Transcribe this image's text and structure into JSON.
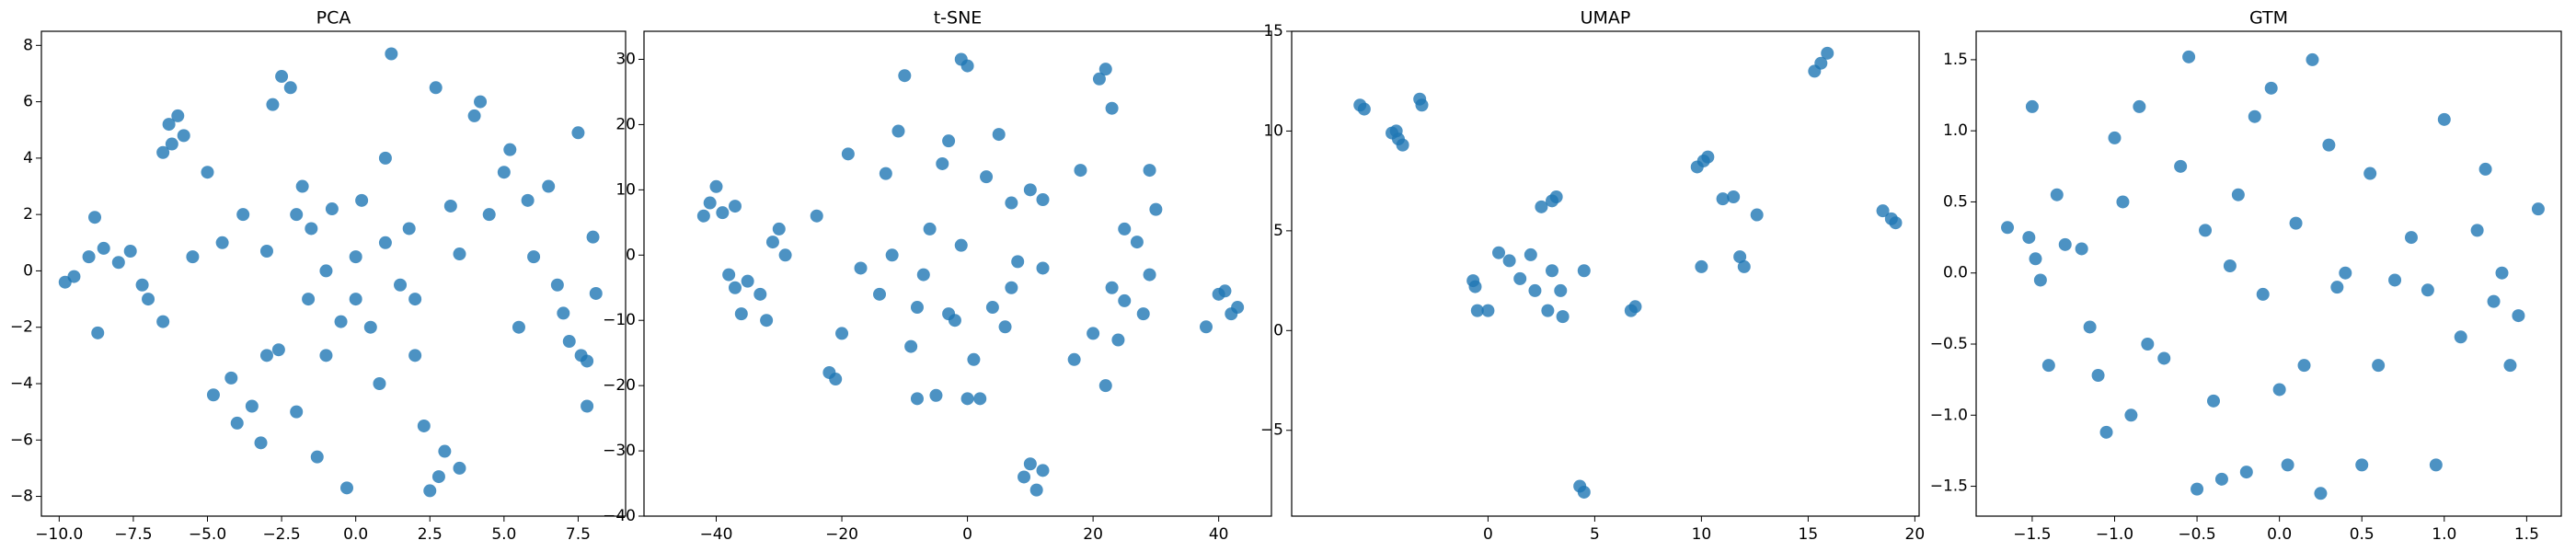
{
  "chart_data": [
    {
      "type": "scatter",
      "title": "PCA",
      "color": "#1f77b4",
      "xlim": [
        -10.6,
        9.1
      ],
      "ylim": [
        -8.7,
        8.5
      ],
      "xticks": [
        {
          "value": -10,
          "label": "−10.0"
        },
        {
          "value": -7.5,
          "label": "−7.5"
        },
        {
          "value": -5,
          "label": "−5.0"
        },
        {
          "value": -2.5,
          "label": "−2.5"
        },
        {
          "value": 0,
          "label": "0.0"
        },
        2.5,
        {
          "value": 5,
          "label": "5.0"
        },
        7.5
      ],
      "yticks": [
        {
          "value": -8,
          "label": "−8"
        },
        {
          "value": -6,
          "label": "−6"
        },
        {
          "value": -4,
          "label": "−4"
        },
        {
          "value": -2,
          "label": "−2"
        },
        0,
        2,
        4,
        6,
        8
      ],
      "x": [
        -9.8,
        -9.5,
        -9,
        -8.8,
        -8.7,
        -8.5,
        -8,
        -7.6,
        -7.2,
        -7,
        -6.5,
        -6.3,
        -6.2,
        -6,
        -6.5,
        -5.8,
        -5.5,
        -5,
        -4.8,
        -4.5,
        -4.2,
        -4,
        -3.8,
        -3.5,
        -3.2,
        -3,
        -2.8,
        -2.6,
        -2.5,
        -2.2,
        -2,
        -1.8,
        -1.6,
        -1.5,
        -1.3,
        -1,
        -0.8,
        -0.5,
        -0.3,
        0,
        0.2,
        0.5,
        0.8,
        1,
        1.2,
        1.5,
        1.8,
        2,
        2.3,
        2.5,
        2.7,
        2.8,
        3,
        3.5,
        3.2,
        3.5,
        4,
        4.2,
        4.5,
        5,
        5.2,
        5.5,
        5.8,
        6,
        6.5,
        6.8,
        7,
        7.2,
        7.5,
        7.6,
        7.8,
        8,
        7.8,
        8.1,
        -1,
        0,
        1,
        -2,
        -3,
        2
      ],
      "values": [
        -0.4,
        -0.2,
        0.5,
        1.9,
        -2.2,
        0.8,
        0.3,
        0.7,
        -0.5,
        -1,
        -1.8,
        5.2,
        4.5,
        5.5,
        4.2,
        4.8,
        0.5,
        3.5,
        -4.4,
        1,
        -3.8,
        -5.4,
        2,
        -4.8,
        -6.1,
        0.7,
        5.9,
        -2.8,
        6.9,
        6.5,
        -5,
        3,
        -1,
        1.5,
        -6.6,
        -3,
        2.2,
        -1.8,
        -7.7,
        0.5,
        2.5,
        -2,
        -4,
        4,
        7.7,
        -0.5,
        1.5,
        -3,
        -5.5,
        -7.8,
        6.5,
        -7.3,
        -6.4,
        -7,
        2.3,
        0.6,
        5.5,
        6,
        2,
        3.5,
        4.3,
        -2,
        2.5,
        0.5,
        3,
        -0.5,
        -1.5,
        -2.5,
        4.9,
        -3,
        -3.2,
        1.2,
        -4.8,
        -0.8,
        0,
        -1,
        1,
        2,
        -3,
        -1
      ]
    },
    {
      "type": "scatter",
      "title": "t-SNE",
      "color": "#1f77b4",
      "xlim": [
        -51.5,
        48.4
      ],
      "ylim": [
        -40,
        34.3
      ],
      "xticks": [
        {
          "value": -40,
          "label": "−40"
        },
        {
          "value": -20,
          "label": "−20"
        },
        0,
        20,
        40
      ],
      "yticks": [
        {
          "value": -40,
          "label": "−40"
        },
        {
          "value": -30,
          "label": "−30"
        },
        {
          "value": -20,
          "label": "−20"
        },
        {
          "value": -10,
          "label": "−10"
        },
        0,
        10,
        20,
        30
      ],
      "x": [
        -42,
        -41,
        -40,
        -39,
        -37,
        -38,
        -37,
        -36,
        -35,
        -33,
        -32,
        -31,
        -30,
        -29,
        -24,
        -22,
        -21,
        -20,
        -19,
        -17,
        -14,
        -13,
        -12,
        -11,
        -10,
        -9,
        -8,
        -8,
        -7,
        -6,
        -5,
        -4,
        -3,
        -3,
        -2,
        -1,
        -1,
        0,
        0,
        1,
        2,
        3,
        4,
        5,
        6,
        7,
        7,
        8,
        9,
        10,
        10,
        11,
        12,
        12,
        12,
        17,
        18,
        20,
        21,
        22,
        22,
        23,
        23,
        24,
        25,
        25,
        27,
        28,
        29,
        29,
        30,
        38,
        40,
        41,
        42,
        43
      ],
      "values": [
        6,
        8,
        10.5,
        6.5,
        7.5,
        -3,
        -5,
        -9,
        -4,
        -6,
        -10,
        2,
        4,
        0,
        6,
        -18,
        -19,
        -12,
        15.5,
        -2,
        -6,
        12.5,
        0,
        19,
        27.5,
        -14,
        -8,
        -22,
        -3,
        4,
        -21.5,
        14,
        -9,
        17.5,
        -10,
        1.5,
        30,
        29,
        -22,
        -16,
        -22,
        12,
        -8,
        18.5,
        -11,
        -5,
        8,
        -1,
        -34,
        -32,
        10,
        -36,
        -33,
        8.5,
        -2,
        -16,
        13,
        -12,
        27,
        28.5,
        -20,
        22.5,
        -5,
        -13,
        4,
        -7,
        2,
        -9,
        13,
        -3,
        7,
        -11,
        -6,
        -5.5,
        -9,
        -8
      ]
    },
    {
      "type": "scatter",
      "title": "UMAP",
      "color": "#1f77b4",
      "xlim": [
        -9.2,
        20.2
      ],
      "ylim": [
        -9.3,
        15
      ],
      "xticks": [
        0,
        5,
        10,
        15,
        20
      ],
      "yticks": [
        {
          "value": -5,
          "label": "−5"
        },
        0,
        5,
        10,
        15
      ],
      "x": [
        -6,
        -5.8,
        -4.5,
        -4.2,
        -4,
        -4.3,
        -3.2,
        -3.1,
        -0.7,
        -0.6,
        -0.5,
        0,
        0.5,
        1,
        1.5,
        2,
        2.2,
        2.5,
        2.8,
        3,
        3.2,
        3,
        3.4,
        3.5,
        4.5,
        4.3,
        4.5,
        6.7,
        6.9,
        9.8,
        10.1,
        10.3,
        10,
        11,
        11.5,
        11.8,
        12,
        12.6,
        15.3,
        15.6,
        15.9,
        18.5,
        18.9,
        19.1
      ],
      "values": [
        11.3,
        11.1,
        9.9,
        9.6,
        9.3,
        10,
        11.6,
        11.3,
        2.5,
        2.2,
        1,
        1,
        3.9,
        3.5,
        2.6,
        3.8,
        2,
        6.2,
        1,
        6.5,
        6.7,
        3,
        2,
        0.7,
        3,
        -7.8,
        -8.1,
        1,
        1.2,
        8.2,
        8.5,
        8.7,
        3.2,
        6.6,
        6.7,
        3.7,
        3.2,
        5.8,
        13,
        13.4,
        13.9,
        6,
        5.6,
        5.4
      ]
    },
    {
      "type": "scatter",
      "title": "GTM",
      "color": "#1f77b4",
      "xlim": [
        -1.84,
        1.71
      ],
      "ylim": [
        -1.71,
        1.7
      ],
      "xticks": [
        {
          "value": -1.5,
          "label": "−1.5"
        },
        {
          "value": -1,
          "label": "−1.0"
        },
        {
          "value": -0.5,
          "label": "−0.5"
        },
        {
          "value": 0,
          "label": "0.0"
        },
        0.5,
        {
          "value": 1,
          "label": "1.0"
        },
        1.5
      ],
      "yticks": [
        {
          "value": -1.5,
          "label": "−1.5"
        },
        {
          "value": -1,
          "label": "−1.0"
        },
        {
          "value": -0.5,
          "label": "−0.5"
        },
        {
          "value": 0,
          "label": "0.0"
        },
        0.5,
        {
          "value": 1,
          "label": "1.0"
        },
        1.5
      ],
      "x": [
        -1.65,
        -1.5,
        -1.52,
        -1.48,
        -1.45,
        -1.4,
        -1.35,
        -1.3,
        -1.2,
        -1.15,
        -1.1,
        -1.05,
        -1,
        -0.95,
        -0.9,
        -0.85,
        -0.8,
        -0.7,
        -0.6,
        -0.55,
        -0.5,
        -0.45,
        -0.4,
        -0.35,
        -0.3,
        -0.25,
        -0.2,
        -0.15,
        -0.1,
        -0.05,
        0,
        0.05,
        0.1,
        0.15,
        0.2,
        0.25,
        0.3,
        0.35,
        0.4,
        0.5,
        0.55,
        0.6,
        0.7,
        0.8,
        0.9,
        0.95,
        1,
        1.1,
        1.2,
        1.25,
        1.3,
        1.35,
        1.4,
        1.45,
        1.57
      ],
      "values": [
        0.32,
        1.17,
        0.25,
        0.1,
        -0.05,
        -0.65,
        0.55,
        0.2,
        0.17,
        -0.38,
        -0.72,
        -1.12,
        0.95,
        0.5,
        -1,
        1.17,
        -0.5,
        -0.6,
        0.75,
        1.52,
        -1.52,
        0.3,
        -0.9,
        -1.45,
        0.05,
        0.55,
        -1.4,
        1.1,
        -0.15,
        1.3,
        -0.82,
        -1.35,
        0.35,
        -0.65,
        1.5,
        -1.55,
        0.9,
        -0.1,
        0,
        -1.35,
        0.7,
        -0.65,
        -0.05,
        0.25,
        -0.12,
        -1.35,
        1.08,
        -0.45,
        0.3,
        0.73,
        -0.2,
        0,
        -0.65,
        -0.3,
        0.45
      ]
    }
  ]
}
